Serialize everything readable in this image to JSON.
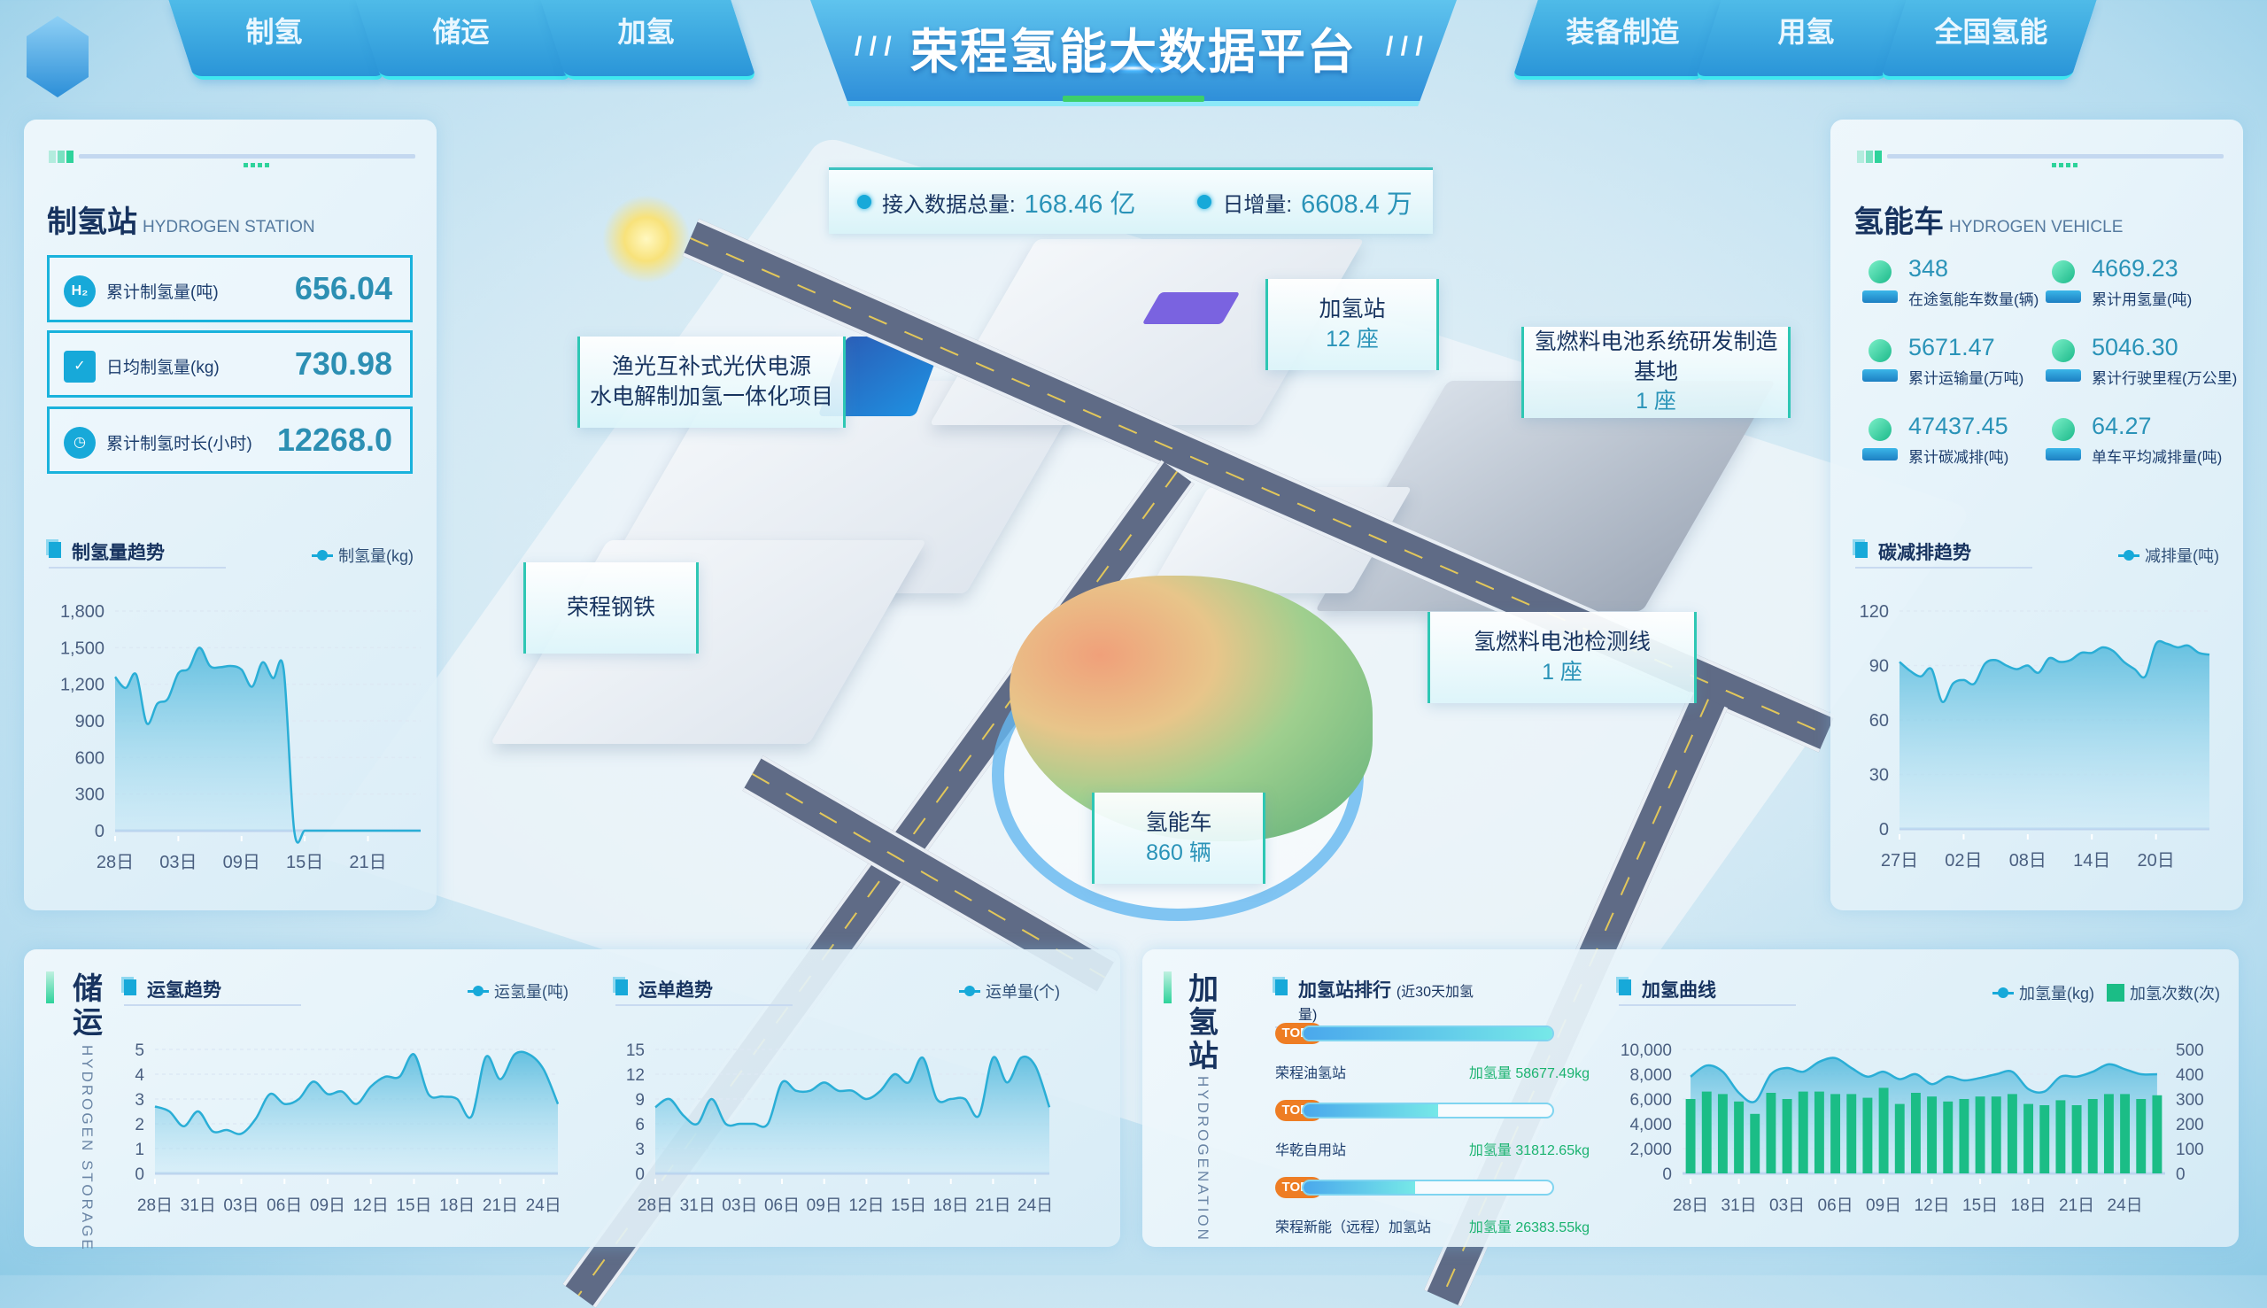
{
  "header": {
    "title": "荣程氢能大数据平台",
    "nav_left": [
      "制氢",
      "储运",
      "加氢"
    ],
    "nav_right": [
      "装备制造",
      "用氢",
      "全国氢能"
    ],
    "logo_icon": "hydrogen-logo"
  },
  "summary": {
    "total_label": "接入数据总量:",
    "total_value": "168.46 亿",
    "daily_label": "日增量:",
    "daily_value": "6608.4 万"
  },
  "scene_labels": {
    "solar": {
      "line1": "渔光互补式光伏电源",
      "line2": "水电解制加氢一体化项目"
    },
    "station": {
      "name": "加氢站",
      "count": "12 座"
    },
    "base": {
      "name": "氢燃料电池系统研发制造基地",
      "count": "1 座"
    },
    "steel": {
      "name": "荣程钢铁"
    },
    "testline": {
      "name": "氢燃料电池检测线",
      "count": "1 座"
    },
    "vehicle": {
      "name": "氢能车",
      "count": "860 辆"
    }
  },
  "hydrogen_station": {
    "title": "制氢站",
    "subtitle": "HYDROGEN STATION",
    "stats": [
      {
        "icon": "h2-cloud-icon",
        "icon_text": "H₂",
        "label": "累计制氢量(吨)",
        "value": "656.04"
      },
      {
        "icon": "calendar-check-icon",
        "icon_text": "✓",
        "label": "日均制氢量(kg)",
        "value": "730.98"
      },
      {
        "icon": "clock-icon",
        "icon_text": "◷",
        "label": "累计制氢时长(小时)",
        "value": "12268.0"
      }
    ],
    "trend_title": "制氢量趋势",
    "legend": "制氢量(kg)"
  },
  "vehicle": {
    "title": "氢能车",
    "subtitle": "HYDROGEN VEHICLE",
    "stats": [
      {
        "icon": "truck-icon",
        "value": "348",
        "label": "在途氢能车数量(辆)"
      },
      {
        "icon": "h2-cloud-icon",
        "value": "4669.23",
        "label": "累计用氢量(吨)"
      },
      {
        "icon": "cargo-icon",
        "value": "5671.47",
        "label": "累计运输量(万吨)"
      },
      {
        "icon": "navigation-icon",
        "value": "5046.30",
        "label": "累计行驶里程(万公里)"
      },
      {
        "icon": "sprout-icon",
        "value": "47437.45",
        "label": "累计碳减排(吨)"
      },
      {
        "icon": "leaf-icon",
        "value": "64.27",
        "label": "单车平均减排量(吨)"
      }
    ],
    "trend_title": "碳减排趋势",
    "legend": "减排量(吨)"
  },
  "storage": {
    "title": "储运",
    "subtitle": "HYDROGEN STORAGE",
    "chart1_title": "运氢趋势",
    "chart1_legend": "运氢量(吨)",
    "chart2_title": "运单趋势",
    "chart2_legend": "运单量(个)"
  },
  "refuel": {
    "title": "加氢站",
    "subtitle": "HYDROGENATION",
    "ranking_title": "加氢站排行",
    "ranking_note": "(近30天加氢量)",
    "ranking": [
      {
        "badge": "TOP1",
        "name": "荣程油氢站",
        "value": "加氢量 58677.49kg",
        "fraction": 1.0
      },
      {
        "badge": "TOP2",
        "name": "华乾自用站",
        "value": "加氢量 31812.65kg",
        "fraction": 0.54
      },
      {
        "badge": "TOP3",
        "name": "荣程新能（远程）加氢站",
        "value": "加氢量 26383.55kg",
        "fraction": 0.45
      }
    ],
    "curve_title": "加氢曲线",
    "legend_line": "加氢量(kg)",
    "legend_bar": "加氢次数(次)"
  },
  "colors": {
    "accent": "#17a9d9",
    "bar": "#1bbd86",
    "badge": "#ee7d24",
    "value": "#2a93b8"
  },
  "chart_data": [
    {
      "id": "production",
      "type": "area",
      "categories": [
        "28日",
        "29日",
        "30日",
        "31日",
        "01日",
        "02日",
        "03日",
        "04日",
        "05日",
        "06日",
        "07日",
        "08日",
        "09日",
        "10日",
        "11日",
        "12日",
        "13日",
        "14日",
        "15日",
        "16日",
        "17日",
        "18日",
        "19日",
        "20日",
        "21日",
        "22日",
        "23日",
        "24日",
        "25日",
        "26日"
      ],
      "x_ticks": [
        "28日",
        "03日",
        "09日",
        "15日",
        "21日"
      ],
      "series": [
        {
          "name": "制氢量(kg)",
          "values": [
            1260,
            1170,
            1280,
            880,
            1040,
            1080,
            1290,
            1330,
            1500,
            1350,
            1340,
            1350,
            1320,
            1180,
            1380,
            1250,
            1320,
            0,
            0,
            0,
            0,
            0,
            0,
            0,
            0,
            0,
            0,
            0,
            0,
            0
          ]
        }
      ],
      "ylim": [
        0,
        1800
      ],
      "y_ticks": [
        0,
        300,
        600,
        900,
        1200,
        1500,
        1800
      ],
      "grid": true
    },
    {
      "id": "carbon",
      "type": "area",
      "categories": [
        "27日",
        "28日",
        "29日",
        "30日",
        "31日",
        "01日",
        "02日",
        "03日",
        "04日",
        "05日",
        "06日",
        "07日",
        "08日",
        "09日",
        "10日",
        "11日",
        "12日",
        "13日",
        "14日",
        "15日",
        "16日",
        "17日",
        "18日",
        "19日",
        "20日",
        "21日",
        "22日",
        "23日",
        "24日",
        "25日"
      ],
      "x_ticks": [
        "27日",
        "02日",
        "08日",
        "14日",
        "20日"
      ],
      "series": [
        {
          "name": "减排量(吨)",
          "values": [
            92,
            87,
            84,
            88,
            70,
            80,
            82,
            80,
            91,
            93,
            90,
            88,
            90,
            86,
            94,
            92,
            93,
            97,
            97,
            100,
            98,
            92,
            88,
            84,
            102,
            102,
            100,
            101,
            97,
            96
          ]
        }
      ],
      "ylim": [
        0,
        120
      ],
      "y_ticks": [
        0,
        30,
        60,
        90,
        120
      ],
      "grid": true
    },
    {
      "id": "transport",
      "type": "area",
      "categories": [
        "28日",
        "29日",
        "30日",
        "31日",
        "01日",
        "02日",
        "03日",
        "04日",
        "05日",
        "06日",
        "07日",
        "08日",
        "09日",
        "10日",
        "11日",
        "12日",
        "13日",
        "14日",
        "15日",
        "16日",
        "17日",
        "18日",
        "19日",
        "20日",
        "21日",
        "22日",
        "23日",
        "24日",
        "25日"
      ],
      "x_ticks": [
        "28日",
        "31日",
        "03日",
        "06日",
        "09日",
        "12日",
        "15日",
        "18日",
        "21日",
        "24日"
      ],
      "series": [
        {
          "name": "运氢量(吨)",
          "values": [
            2.7,
            2.5,
            1.9,
            2.5,
            1.7,
            1.75,
            1.6,
            2.2,
            3.2,
            2.8,
            3.0,
            3.7,
            3.2,
            3.3,
            2.8,
            3.5,
            3.9,
            3.9,
            4.8,
            3.2,
            3.1,
            3.0,
            2.3,
            4.7,
            3.8,
            4.8,
            4.8,
            4.2,
            2.8
          ]
        }
      ],
      "ylim": [
        0,
        5
      ],
      "y_ticks": [
        0,
        1,
        2,
        3,
        4,
        5
      ],
      "grid": true
    },
    {
      "id": "orders",
      "type": "area",
      "categories": [
        "28日",
        "29日",
        "30日",
        "31日",
        "01日",
        "02日",
        "03日",
        "04日",
        "05日",
        "06日",
        "07日",
        "08日",
        "09日",
        "10日",
        "11日",
        "12日",
        "13日",
        "14日",
        "15日",
        "16日",
        "17日",
        "18日",
        "19日",
        "20日",
        "21日",
        "22日",
        "23日",
        "24日",
        "25日"
      ],
      "x_ticks": [
        "28日",
        "31日",
        "03日",
        "06日",
        "09日",
        "12日",
        "15日",
        "18日",
        "21日",
        "24日"
      ],
      "series": [
        {
          "name": "运单量(个)",
          "values": [
            8,
            9,
            7,
            6,
            9,
            6,
            6,
            6,
            6,
            11,
            10,
            10,
            11,
            10,
            10,
            9,
            10,
            12,
            11,
            14,
            9,
            9,
            9,
            7,
            14,
            11,
            14,
            13,
            8
          ]
        }
      ],
      "ylim": [
        0,
        15
      ],
      "y_ticks": [
        0,
        3,
        6,
        9,
        12,
        15
      ],
      "grid": true
    },
    {
      "id": "refuel",
      "type": "bar+line",
      "categories": [
        "28日",
        "29日",
        "30日",
        "31日",
        "01日",
        "02日",
        "03日",
        "04日",
        "05日",
        "06日",
        "07日",
        "08日",
        "09日",
        "10日",
        "11日",
        "12日",
        "13日",
        "14日",
        "15日",
        "16日",
        "17日",
        "18日",
        "19日",
        "20日",
        "21日",
        "22日",
        "23日",
        "24日",
        "25日",
        "26日"
      ],
      "x_ticks": [
        "28日",
        "31日",
        "03日",
        "06日",
        "09日",
        "12日",
        "15日",
        "18日",
        "21日",
        "24日"
      ],
      "series": [
        {
          "name": "加氢量(kg)",
          "type": "line",
          "axis": "left",
          "values": [
            7800,
            8700,
            8200,
            6500,
            5800,
            8000,
            8500,
            8200,
            9000,
            9300,
            8500,
            7800,
            8200,
            7600,
            8000,
            7200,
            7800,
            7500,
            7700,
            8000,
            8200,
            6800,
            6600,
            7800,
            7800,
            8200,
            8800,
            8400,
            8000,
            8000
          ]
        },
        {
          "name": "加氢次数(次)",
          "type": "bar",
          "axis": "right",
          "values": [
            300,
            330,
            320,
            290,
            240,
            325,
            300,
            330,
            330,
            320,
            320,
            305,
            345,
            280,
            325,
            310,
            290,
            300,
            310,
            310,
            320,
            280,
            275,
            295,
            275,
            300,
            320,
            320,
            300,
            315
          ]
        }
      ],
      "ylim_left": [
        0,
        10000
      ],
      "y_ticks_left": [
        0,
        2000,
        4000,
        6000,
        8000,
        10000
      ],
      "ylim_right": [
        0,
        500
      ],
      "y_ticks_right": [
        0,
        100,
        200,
        300,
        400,
        500
      ],
      "grid": true
    }
  ]
}
